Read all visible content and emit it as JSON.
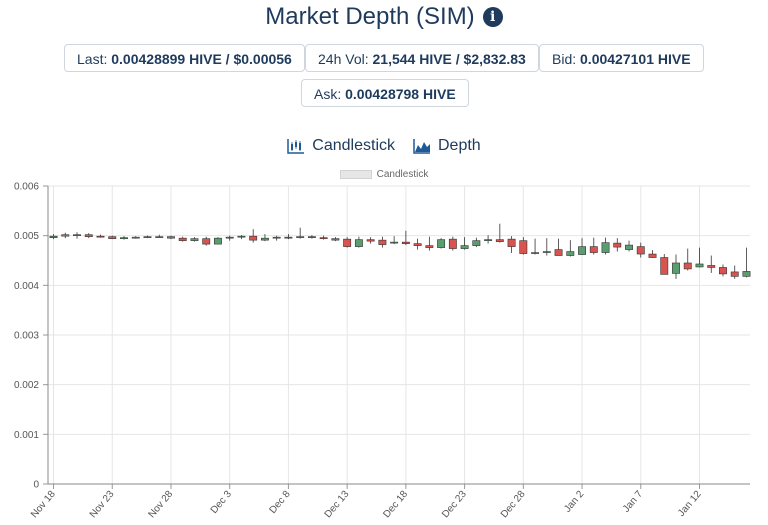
{
  "header": {
    "title": "Market Depth (SIM)",
    "info_icon": "info-circle-icon"
  },
  "stats": {
    "last_label": "Last:",
    "last_value": "0.00428899 HIVE / $0.00056",
    "vol_label": "24h Vol:",
    "vol_value": "21,544 HIVE / $2,832.83",
    "bid_label": "Bid:",
    "bid_value": "0.00427101 HIVE",
    "ask_label": "Ask:",
    "ask_value": "0.00428798 HIVE"
  },
  "tabs": [
    {
      "label": "Candlestick",
      "icon": "candlestick-chart-icon"
    },
    {
      "label": "Depth",
      "icon": "area-chart-icon"
    }
  ],
  "colors": {
    "up": "#5a9e70",
    "down": "#d9534f",
    "wick": "#333333",
    "title": "#1e3a5c"
  },
  "chart_data": {
    "type": "candlestick",
    "legend": [
      "Candlestick"
    ],
    "ylim": [
      0,
      0.006
    ],
    "yticks": [
      "0",
      "0.001",
      "0.002",
      "0.003",
      "0.004",
      "0.005",
      "0.006"
    ],
    "xticks": [
      {
        "label": "Nov 18",
        "day": 0
      },
      {
        "label": "Nov 23",
        "day": 5
      },
      {
        "label": "Nov 28",
        "day": 10
      },
      {
        "label": "Dec 3",
        "day": 15
      },
      {
        "label": "Dec 8",
        "day": 20
      },
      {
        "label": "Dec 13",
        "day": 25
      },
      {
        "label": "Dec 18",
        "day": 30
      },
      {
        "label": "Dec 23",
        "day": 35
      },
      {
        "label": "Dec 28",
        "day": 40
      },
      {
        "label": "Jan 2",
        "day": 45
      },
      {
        "label": "Jan 7",
        "day": 50
      },
      {
        "label": "Jan 12",
        "day": 55
      }
    ],
    "grid": true,
    "candles": [
      {
        "date": "Nov 18",
        "o": 0.00496,
        "h": 0.00503,
        "l": 0.00493,
        "c": 0.00499
      },
      {
        "date": "Nov 19",
        "o": 0.00499,
        "h": 0.00506,
        "l": 0.00495,
        "c": 0.00502
      },
      {
        "date": "Nov 20",
        "o": 0.00502,
        "h": 0.00507,
        "l": 0.00494,
        "c": 0.00502
      },
      {
        "date": "Nov 21",
        "o": 0.00502,
        "h": 0.00505,
        "l": 0.00495,
        "c": 0.00498
      },
      {
        "date": "Nov 22",
        "o": 0.00499,
        "h": 0.00502,
        "l": 0.00496,
        "c": 0.00498
      },
      {
        "date": "Nov 23",
        "o": 0.00498,
        "h": 0.005,
        "l": 0.00493,
        "c": 0.00494
      },
      {
        "date": "Nov 24",
        "o": 0.00494,
        "h": 0.00499,
        "l": 0.00492,
        "c": 0.00496
      },
      {
        "date": "Nov 25",
        "o": 0.00496,
        "h": 0.00499,
        "l": 0.00494,
        "c": 0.00497
      },
      {
        "date": "Nov 26",
        "o": 0.00497,
        "h": 0.005,
        "l": 0.00495,
        "c": 0.00498
      },
      {
        "date": "Nov 27",
        "o": 0.00498,
        "h": 0.00502,
        "l": 0.00496,
        "c": 0.00498
      },
      {
        "date": "Nov 28",
        "o": 0.00498,
        "h": 0.005,
        "l": 0.00493,
        "c": 0.00495
      },
      {
        "date": "Nov 29",
        "o": 0.00495,
        "h": 0.00498,
        "l": 0.00488,
        "c": 0.0049
      },
      {
        "date": "Nov 30",
        "o": 0.0049,
        "h": 0.00497,
        "l": 0.00488,
        "c": 0.00494
      },
      {
        "date": "Dec 1",
        "o": 0.00494,
        "h": 0.00498,
        "l": 0.0048,
        "c": 0.00483
      },
      {
        "date": "Dec 2",
        "o": 0.00483,
        "h": 0.00497,
        "l": 0.00483,
        "c": 0.00495
      },
      {
        "date": "Dec 3",
        "o": 0.00495,
        "h": 0.005,
        "l": 0.0049,
        "c": 0.00497
      },
      {
        "date": "Dec 4",
        "o": 0.00497,
        "h": 0.00501,
        "l": 0.00493,
        "c": 0.00499
      },
      {
        "date": "Dec 5",
        "o": 0.00499,
        "h": 0.00513,
        "l": 0.00486,
        "c": 0.00491
      },
      {
        "date": "Dec 6",
        "o": 0.00491,
        "h": 0.00503,
        "l": 0.00489,
        "c": 0.00495
      },
      {
        "date": "Dec 7",
        "o": 0.00495,
        "h": 0.005,
        "l": 0.0049,
        "c": 0.00497
      },
      {
        "date": "Dec 8",
        "o": 0.00497,
        "h": 0.00503,
        "l": 0.00493,
        "c": 0.00496
      },
      {
        "date": "Dec 9",
        "o": 0.00496,
        "h": 0.00516,
        "l": 0.00494,
        "c": 0.00498
      },
      {
        "date": "Dec 10",
        "o": 0.00498,
        "h": 0.00501,
        "l": 0.00494,
        "c": 0.00496
      },
      {
        "date": "Dec 11",
        "o": 0.00496,
        "h": 0.005,
        "l": 0.00492,
        "c": 0.00494
      },
      {
        "date": "Dec 12",
        "o": 0.00494,
        "h": 0.00497,
        "l": 0.00489,
        "c": 0.00491
      },
      {
        "date": "Dec 13",
        "o": 0.00493,
        "h": 0.00497,
        "l": 0.00476,
        "c": 0.00478
      },
      {
        "date": "Dec 14",
        "o": 0.00478,
        "h": 0.00498,
        "l": 0.00476,
        "c": 0.00492
      },
      {
        "date": "Dec 15",
        "o": 0.00492,
        "h": 0.00497,
        "l": 0.00484,
        "c": 0.00489
      },
      {
        "date": "Dec 16",
        "o": 0.00491,
        "h": 0.00498,
        "l": 0.00476,
        "c": 0.00482
      },
      {
        "date": "Dec 17",
        "o": 0.00486,
        "h": 0.00499,
        "l": 0.00483,
        "c": 0.00487
      },
      {
        "date": "Dec 18",
        "o": 0.00487,
        "h": 0.0051,
        "l": 0.00481,
        "c": 0.00484
      },
      {
        "date": "Dec 19",
        "o": 0.00484,
        "h": 0.00494,
        "l": 0.00472,
        "c": 0.0048
      },
      {
        "date": "Dec 20",
        "o": 0.0048,
        "h": 0.00498,
        "l": 0.0047,
        "c": 0.00476
      },
      {
        "date": "Dec 21",
        "o": 0.00476,
        "h": 0.00495,
        "l": 0.00474,
        "c": 0.00492
      },
      {
        "date": "Dec 22",
        "o": 0.00493,
        "h": 0.00498,
        "l": 0.0047,
        "c": 0.00474
      },
      {
        "date": "Dec 23",
        "o": 0.00474,
        "h": 0.00497,
        "l": 0.00472,
        "c": 0.0048
      },
      {
        "date": "Dec 24",
        "o": 0.0048,
        "h": 0.00496,
        "l": 0.00477,
        "c": 0.0049
      },
      {
        "date": "Dec 25",
        "o": 0.0049,
        "h": 0.00501,
        "l": 0.00484,
        "c": 0.00492
      },
      {
        "date": "Dec 26",
        "o": 0.00492,
        "h": 0.00524,
        "l": 0.00486,
        "c": 0.00488
      },
      {
        "date": "Dec 27",
        "o": 0.00493,
        "h": 0.00499,
        "l": 0.00465,
        "c": 0.00478
      },
      {
        "date": "Dec 28",
        "o": 0.0049,
        "h": 0.00497,
        "l": 0.00462,
        "c": 0.00464
      },
      {
        "date": "Dec 29",
        "o": 0.00464,
        "h": 0.00494,
        "l": 0.00462,
        "c": 0.00466
      },
      {
        "date": "Dec 30",
        "o": 0.00466,
        "h": 0.00495,
        "l": 0.0046,
        "c": 0.00468
      },
      {
        "date": "Dec 31",
        "o": 0.00472,
        "h": 0.00494,
        "l": 0.0046,
        "c": 0.0046
      },
      {
        "date": "Jan 1",
        "o": 0.0046,
        "h": 0.00491,
        "l": 0.00458,
        "c": 0.00468
      },
      {
        "date": "Jan 2",
        "o": 0.00462,
        "h": 0.00495,
        "l": 0.00461,
        "c": 0.00478
      },
      {
        "date": "Jan 3",
        "o": 0.00478,
        "h": 0.00496,
        "l": 0.00462,
        "c": 0.00466
      },
      {
        "date": "Jan 4",
        "o": 0.00466,
        "h": 0.00496,
        "l": 0.00462,
        "c": 0.00486
      },
      {
        "date": "Jan 5",
        "o": 0.00485,
        "h": 0.00495,
        "l": 0.00468,
        "c": 0.00477
      },
      {
        "date": "Jan 6",
        "o": 0.00472,
        "h": 0.0049,
        "l": 0.00468,
        "c": 0.00481
      },
      {
        "date": "Jan 7",
        "o": 0.00478,
        "h": 0.00486,
        "l": 0.00456,
        "c": 0.00463
      },
      {
        "date": "Jan 8",
        "o": 0.00463,
        "h": 0.00471,
        "l": 0.00455,
        "c": 0.00456
      },
      {
        "date": "Jan 9",
        "o": 0.00456,
        "h": 0.00463,
        "l": 0.00422,
        "c": 0.00422
      },
      {
        "date": "Jan 10",
        "o": 0.00424,
        "h": 0.00462,
        "l": 0.00413,
        "c": 0.00445
      },
      {
        "date": "Jan 11",
        "o": 0.00445,
        "h": 0.00474,
        "l": 0.0043,
        "c": 0.00433
      },
      {
        "date": "Jan 12",
        "o": 0.00437,
        "h": 0.00476,
        "l": 0.00436,
        "c": 0.00443
      },
      {
        "date": "Jan 13",
        "o": 0.0044,
        "h": 0.0046,
        "l": 0.00425,
        "c": 0.00436
      },
      {
        "date": "Jan 14",
        "o": 0.00436,
        "h": 0.00442,
        "l": 0.00418,
        "c": 0.00423
      },
      {
        "date": "Jan 15",
        "o": 0.00427,
        "h": 0.0044,
        "l": 0.00413,
        "c": 0.00418
      },
      {
        "date": "Jan 16",
        "o": 0.00418,
        "h": 0.00476,
        "l": 0.00416,
        "c": 0.00428
      }
    ]
  }
}
